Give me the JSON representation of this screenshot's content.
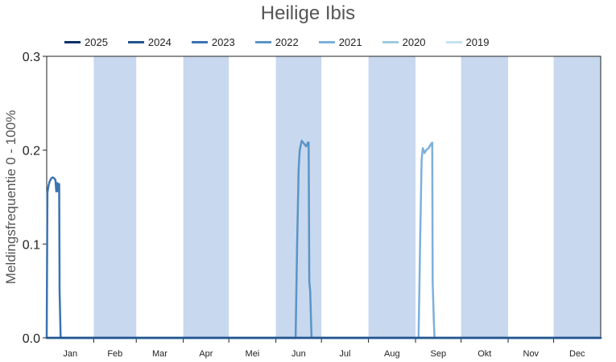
{
  "chart_data": {
    "type": "line",
    "title": "Heilige Ibis",
    "xlabel": "",
    "ylabel": "Meldingsfrequentie 0 - 100%",
    "ylim": [
      0,
      0.3
    ],
    "xlim": [
      0,
      365
    ],
    "yticks": [
      "0.0",
      "0.1",
      "0.2",
      "0.3"
    ],
    "yticks_values": [
      0,
      0.1,
      0.2,
      0.3
    ],
    "months": [
      "Jan",
      "Feb",
      "Mar",
      "Apr",
      "Mei",
      "Jun",
      "Jul",
      "Aug",
      "Sep",
      "Okt",
      "Nov",
      "Dec"
    ],
    "month_starts": [
      0,
      31,
      59,
      90,
      120,
      151,
      181,
      212,
      243,
      273,
      304,
      334,
      365
    ],
    "band_color": "#c8d8ee",
    "series": [
      {
        "name": "2025",
        "color": "#08306b",
        "x": [],
        "y": []
      },
      {
        "name": "2024",
        "color": "#23548e",
        "x": [
          0,
          365
        ],
        "y": [
          0,
          0
        ]
      },
      {
        "name": "2023",
        "color": "#3b73b0",
        "x": [
          0,
          0.5,
          1.3,
          2,
          3,
          4,
          5,
          5.8,
          6.3,
          7,
          7.7,
          8.2,
          8.5,
          9.2,
          365
        ],
        "y": [
          0,
          0.155,
          0.163,
          0.167,
          0.17,
          0.171,
          0.17,
          0.168,
          0.156,
          0.165,
          0.156,
          0.164,
          0.05,
          0,
          0
        ]
      },
      {
        "name": "2022",
        "color": "#5b94c6",
        "x": [
          0,
          164,
          165,
          166,
          166.7,
          168,
          169.5,
          171,
          172,
          172.6,
          173,
          173.6,
          174.5,
          175.5,
          365
        ],
        "y": [
          0,
          0,
          0.1,
          0.18,
          0.2,
          0.21,
          0.207,
          0.204,
          0.208,
          0.208,
          0.06,
          0.05,
          0,
          0,
          0
        ]
      },
      {
        "name": "2021",
        "color": "#7cb0dc",
        "x": [
          0,
          245,
          246,
          247,
          247.8,
          249,
          250,
          251.5,
          253,
          254,
          254.3,
          255,
          255.5,
          256,
          365
        ],
        "y": [
          0,
          0,
          0.1,
          0.19,
          0.202,
          0.197,
          0.2,
          0.202,
          0.206,
          0.208,
          0.06,
          0.02,
          0,
          0,
          0
        ]
      },
      {
        "name": "2020",
        "color": "#9ecae1",
        "x": [],
        "y": []
      },
      {
        "name": "2019",
        "color": "#c6e2f3",
        "x": [],
        "y": []
      }
    ]
  }
}
